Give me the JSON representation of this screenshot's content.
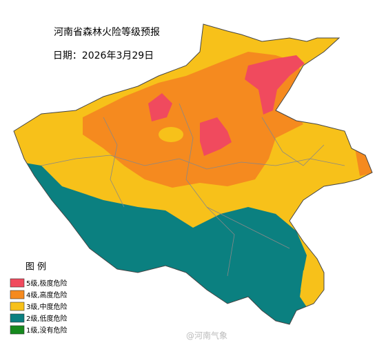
{
  "map": {
    "title": "河南省森林火险等级预报",
    "date": "日期：2026年3月29日",
    "legend": {
      "title": "图  例",
      "items": [
        {
          "label": "5级,极度危险",
          "color": "#f04a5e"
        },
        {
          "label": "4级,高度危险",
          "color": "#f58a1f"
        },
        {
          "label": "3级,中度危险",
          "color": "#f7c11a"
        },
        {
          "label": "2级,低度危险",
          "color": "#0b8080"
        },
        {
          "label": "1级,没有危险",
          "color": "#168a1e"
        }
      ]
    },
    "watermark": "@河南气象"
  }
}
